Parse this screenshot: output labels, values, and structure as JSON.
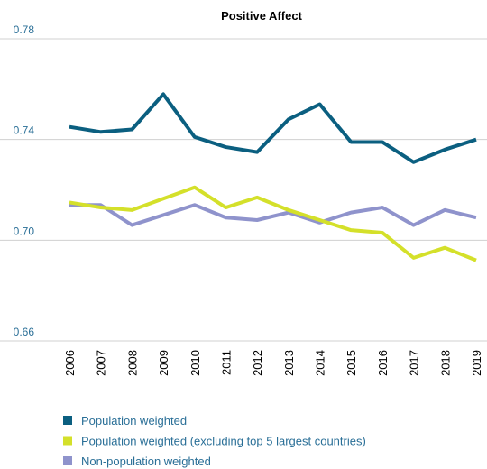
{
  "chart_data": {
    "type": "line",
    "title": "Positive Affect",
    "categories": [
      "2006",
      "2007",
      "2008",
      "2009",
      "2010",
      "2011",
      "2012",
      "2013",
      "2014",
      "2015",
      "2016",
      "2017",
      "2018",
      "2019"
    ],
    "series": [
      {
        "name": "Population weighted",
        "color": "#0b5f80",
        "values": [
          0.745,
          0.743,
          0.744,
          0.758,
          0.741,
          0.737,
          0.735,
          0.748,
          0.754,
          0.739,
          0.739,
          0.731,
          0.736,
          0.74
        ]
      },
      {
        "name": "Population weighted (excluding top 5 largest countries)",
        "color": "#d4e02a",
        "values": [
          0.715,
          0.713,
          0.712,
          0.7165,
          0.721,
          0.713,
          0.717,
          0.712,
          0.708,
          0.704,
          0.703,
          0.693,
          0.697,
          0.692
        ]
      },
      {
        "name": "Non-population weighted",
        "color": "#8f93cc",
        "values": [
          0.714,
          0.714,
          0.706,
          0.71,
          0.714,
          0.709,
          0.708,
          0.711,
          0.707,
          0.711,
          0.713,
          0.706,
          0.712,
          0.709
        ]
      }
    ],
    "ylim": [
      0.66,
      0.78
    ],
    "yticks": [
      0.66,
      {
        "value": 0.7,
        "label": "0.70"
      },
      0.74,
      0.78
    ],
    "grid": true
  }
}
